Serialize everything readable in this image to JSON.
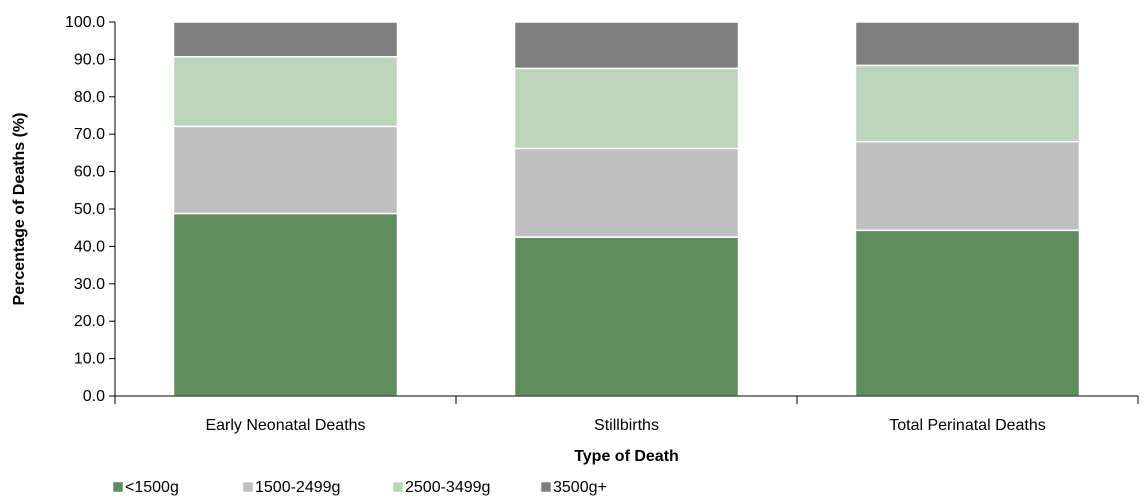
{
  "chart_data": {
    "type": "bar",
    "stacked": true,
    "title": "",
    "xlabel": "Type of Death",
    "ylabel": "Percentage of Deaths (%)",
    "ylim": [
      0,
      100
    ],
    "ytick_step": 10,
    "ytick_labels": [
      "0.0",
      "10.0",
      "20.0",
      "30.0",
      "40.0",
      "50.0",
      "60.0",
      "70.0",
      "80.0",
      "90.0",
      "100.0"
    ],
    "grid": false,
    "legend_position": "bottom-left",
    "categories": [
      "Early Neonatal Deaths",
      "Stillbirths",
      "Total Perinatal Deaths"
    ],
    "series": [
      {
        "name": "<1500g",
        "color": "#5f8c5f",
        "values": [
          48.8,
          42.5,
          44.3
        ]
      },
      {
        "name": "1500-2499g",
        "color": "#bfbfbf",
        "values": [
          23.3,
          23.7,
          23.7
        ]
      },
      {
        "name": "2500-3499g",
        "color": "#bcd4bc",
        "values": [
          18.6,
          21.4,
          20.4
        ]
      },
      {
        "name": "3500g+",
        "color": "#7f7f7f",
        "values": [
          9.3,
          12.4,
          11.6
        ]
      }
    ]
  }
}
